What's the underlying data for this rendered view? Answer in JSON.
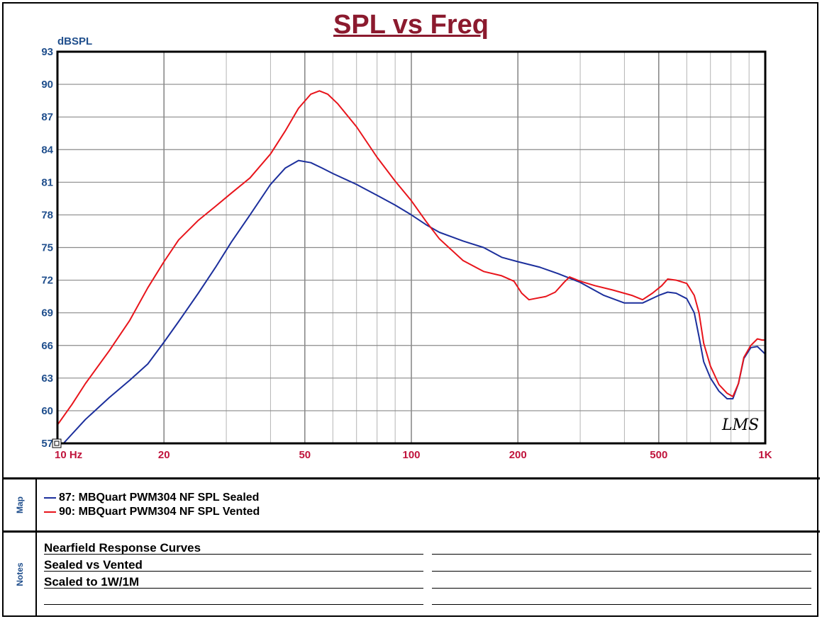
{
  "chart_data": {
    "type": "line",
    "title": "SPL vs Freq",
    "ylabel": "dBSPL",
    "xscale": "log",
    "xlim": [
      10,
      1000
    ],
    "ylim": [
      57,
      93
    ],
    "grid": true,
    "yticks": [
      57,
      60,
      63,
      66,
      69,
      72,
      75,
      78,
      81,
      84,
      87,
      90,
      93
    ],
    "ytick_labels": [
      "57",
      "60",
      "63",
      "66",
      "69",
      "72",
      "75",
      "78",
      "81",
      "84",
      "87",
      "90",
      "93"
    ],
    "xticks": [
      10,
      20,
      50,
      100,
      200,
      500,
      1000
    ],
    "xtick_labels": [
      "10 Hz",
      "20",
      "50",
      "100",
      "200",
      "500",
      "1K"
    ],
    "series": [
      {
        "name": "87: MBQuart PWM304 NF SPL Sealed",
        "color": "#1c2f9c",
        "points": [
          [
            10.4,
            57
          ],
          [
            12,
            59.2
          ],
          [
            14,
            61.2
          ],
          [
            16,
            62.8
          ],
          [
            18,
            64.3
          ],
          [
            20,
            66.3
          ],
          [
            22,
            68.2
          ],
          [
            25,
            70.8
          ],
          [
            28,
            73.2
          ],
          [
            31,
            75.5
          ],
          [
            35,
            78
          ],
          [
            40,
            80.8
          ],
          [
            44,
            82.3
          ],
          [
            48,
            83
          ],
          [
            52,
            82.8
          ],
          [
            56,
            82.3
          ],
          [
            60,
            81.8
          ],
          [
            70,
            80.8
          ],
          [
            80,
            79.8
          ],
          [
            90,
            78.9
          ],
          [
            100,
            78
          ],
          [
            110,
            77.1
          ],
          [
            120,
            76.4
          ],
          [
            140,
            75.6
          ],
          [
            160,
            75
          ],
          [
            180,
            74.1
          ],
          [
            200,
            73.7
          ],
          [
            230,
            73.2
          ],
          [
            260,
            72.6
          ],
          [
            300,
            71.8
          ],
          [
            350,
            70.6
          ],
          [
            400,
            69.9
          ],
          [
            450,
            69.9
          ],
          [
            500,
            70.6
          ],
          [
            530,
            70.9
          ],
          [
            560,
            70.8
          ],
          [
            600,
            70.3
          ],
          [
            630,
            69
          ],
          [
            650,
            66.8
          ],
          [
            670,
            64.5
          ],
          [
            700,
            63
          ],
          [
            740,
            61.8
          ],
          [
            780,
            61.1
          ],
          [
            810,
            61.1
          ],
          [
            840,
            62.5
          ],
          [
            870,
            64.8
          ],
          [
            910,
            65.8
          ],
          [
            950,
            65.9
          ],
          [
            1000,
            65.2
          ]
        ]
      },
      {
        "name": "90: MBQuart PWM304 NF SPL Vented",
        "color": "#e8141b",
        "points": [
          [
            10,
            58.7
          ],
          [
            11,
            60.6
          ],
          [
            12,
            62.5
          ],
          [
            14,
            65.5
          ],
          [
            16,
            68.3
          ],
          [
            18,
            71.3
          ],
          [
            20,
            73.7
          ],
          [
            22,
            75.7
          ],
          [
            25,
            77.5
          ],
          [
            28,
            78.8
          ],
          [
            31,
            80
          ],
          [
            35,
            81.4
          ],
          [
            40,
            83.6
          ],
          [
            44,
            85.7
          ],
          [
            48,
            87.8
          ],
          [
            52,
            89.1
          ],
          [
            55,
            89.4
          ],
          [
            58,
            89.1
          ],
          [
            62,
            88.2
          ],
          [
            70,
            86.1
          ],
          [
            80,
            83.3
          ],
          [
            90,
            81.1
          ],
          [
            100,
            79.3
          ],
          [
            110,
            77.4
          ],
          [
            120,
            75.8
          ],
          [
            140,
            73.8
          ],
          [
            160,
            72.8
          ],
          [
            180,
            72.4
          ],
          [
            195,
            71.9
          ],
          [
            205,
            70.8
          ],
          [
            215,
            70.2
          ],
          [
            240,
            70.5
          ],
          [
            255,
            70.9
          ],
          [
            270,
            71.8
          ],
          [
            280,
            72.3
          ],
          [
            300,
            71.9
          ],
          [
            330,
            71.5
          ],
          [
            370,
            71.1
          ],
          [
            420,
            70.6
          ],
          [
            450,
            70.2
          ],
          [
            480,
            70.8
          ],
          [
            510,
            71.5
          ],
          [
            530,
            72.1
          ],
          [
            560,
            72
          ],
          [
            600,
            71.7
          ],
          [
            630,
            70.6
          ],
          [
            650,
            69
          ],
          [
            670,
            66.2
          ],
          [
            700,
            64.1
          ],
          [
            740,
            62.4
          ],
          [
            780,
            61.6
          ],
          [
            810,
            61.3
          ],
          [
            840,
            62.5
          ],
          [
            870,
            64.9
          ],
          [
            910,
            66
          ],
          [
            950,
            66.6
          ],
          [
            980,
            66.5
          ],
          [
            1000,
            66.5
          ]
        ]
      }
    ],
    "watermark": "LMS"
  },
  "map": {
    "label": "Map",
    "legend": [
      {
        "text": "87: MBQuart PWM304 NF SPL Sealed",
        "color": "#1c2f9c"
      },
      {
        "text": "90: MBQuart PWM304 NF SPL Vented",
        "color": "#e8141b"
      }
    ]
  },
  "notes": {
    "label": "Notes",
    "lines": [
      "Nearfield Response Curves",
      "Sealed vs Vented",
      "Scaled to 1W/1M"
    ]
  }
}
